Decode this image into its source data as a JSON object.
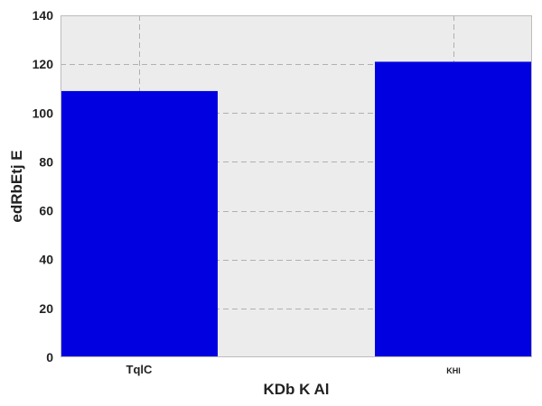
{
  "chart_data": {
    "type": "bar",
    "categories": [
      "TqlC",
      "KHI"
    ],
    "values": [
      109,
      121
    ],
    "title": "",
    "xlabel": "KDb K Al",
    "ylabel": "edRbEtj E",
    "ylim": [
      0,
      140
    ],
    "yticks": [
      0,
      20,
      40,
      60,
      80,
      100,
      120,
      140
    ],
    "grid": true,
    "legend": "none",
    "colors": {
      "bar": "#0000e0",
      "plot_background": "#ececec",
      "grid": "#b0b0b0",
      "frame": "#bcbcbc"
    }
  }
}
